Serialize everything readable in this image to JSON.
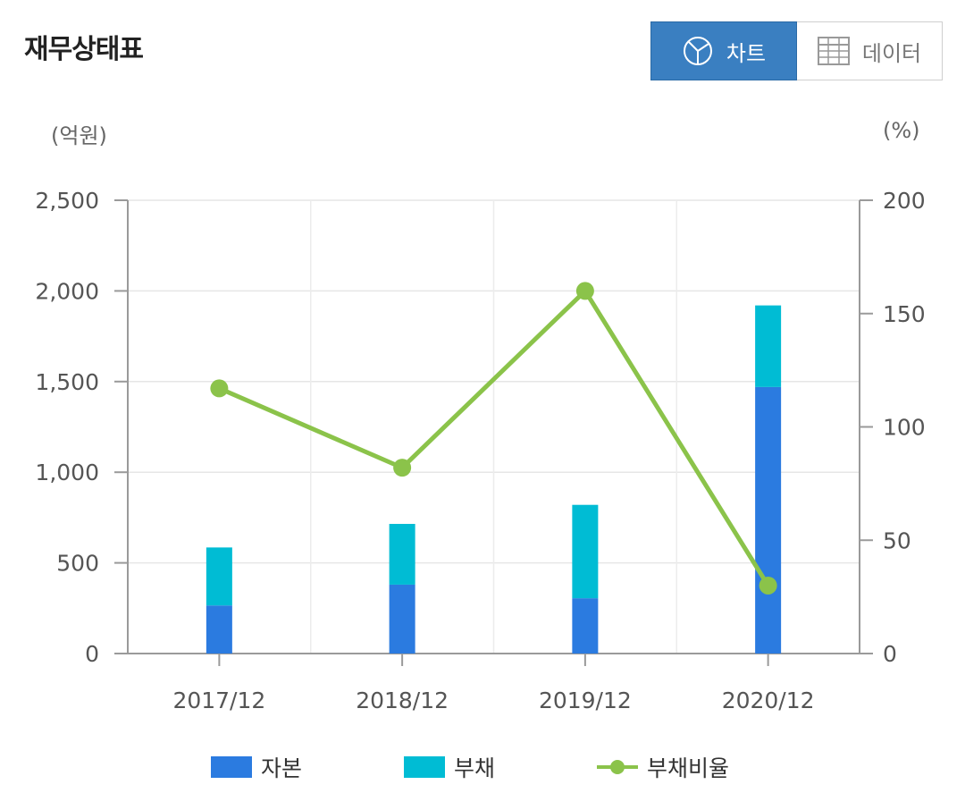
{
  "header": {
    "title": "재무상태표",
    "toggle": {
      "chart_label": "차트",
      "data_label": "데이터",
      "chart_icon": "pie-chart-icon",
      "data_icon": "table-grid-icon",
      "selected": "차트"
    }
  },
  "colors": {
    "capital": "#2b7be0",
    "liability": "#00bcd4",
    "ratio": "#8bc34a",
    "toggle_active": "#3a7fc1"
  },
  "chart_data": {
    "type": "bar",
    "stacked": true,
    "categories": [
      "2017/12",
      "2018/12",
      "2019/12",
      "2020/12"
    ],
    "series": [
      {
        "name": "자본",
        "type": "bar",
        "axis": "left",
        "values": [
          265,
          380,
          305,
          1470
        ]
      },
      {
        "name": "부채",
        "type": "bar",
        "axis": "left",
        "values": [
          320,
          335,
          515,
          450
        ]
      },
      {
        "name": "부채비율",
        "type": "line",
        "axis": "right",
        "values": [
          117,
          82,
          160,
          30
        ]
      }
    ],
    "y_left": {
      "unit": "(억원)",
      "min": 0,
      "max": 2500,
      "ticks": [
        0,
        500,
        1000,
        1500,
        2000,
        2500
      ],
      "tick_labels": [
        "0",
        "500",
        "1,000",
        "1,500",
        "2,000",
        "2,500"
      ]
    },
    "y_right": {
      "unit": "(%)",
      "min": 0,
      "max": 200,
      "ticks": [
        0,
        50,
        100,
        150,
        200
      ],
      "tick_labels": [
        "0",
        "50",
        "100",
        "150",
        "200"
      ]
    },
    "grid": true,
    "legend": "bottom"
  }
}
